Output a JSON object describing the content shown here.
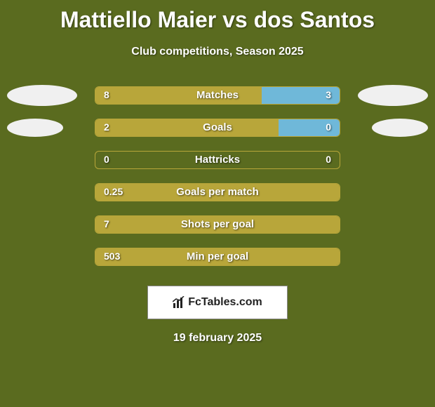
{
  "title": "Mattiello Maier vs dos Santos",
  "subtitle": "Club competitions, Season 2025",
  "date": "19 february 2025",
  "banner_text": "FcTables.com",
  "colors": {
    "background": "#5a6b1f",
    "bar_yellow": "#b8a63a",
    "bar_blue": "#6fb8d9",
    "bar_empty": "transparent",
    "border": "#b8a63a",
    "text": "#ffffff",
    "avatar_bg": "#f0f0f0",
    "banner_bg": "#ffffff"
  },
  "avatars": {
    "show_row1": true,
    "show_row2": true
  },
  "stats": [
    {
      "label": "Matches",
      "left_val": "8",
      "right_val": "3",
      "left_color": "#b8a63a",
      "right_color": "#6fb8d9",
      "left_pct": 68,
      "right_pct": 32
    },
    {
      "label": "Goals",
      "left_val": "2",
      "right_val": "0",
      "left_color": "#b8a63a",
      "right_color": "#6fb8d9",
      "left_pct": 75,
      "right_pct": 25
    },
    {
      "label": "Hattricks",
      "left_val": "0",
      "right_val": "0",
      "left_color": "transparent",
      "right_color": "transparent",
      "left_pct": 50,
      "right_pct": 50
    },
    {
      "label": "Goals per match",
      "left_val": "0.25",
      "right_val": "",
      "left_color": "#b8a63a",
      "right_color": "transparent",
      "left_pct": 100,
      "right_pct": 0
    },
    {
      "label": "Shots per goal",
      "left_val": "7",
      "right_val": "",
      "left_color": "#b8a63a",
      "right_color": "transparent",
      "left_pct": 100,
      "right_pct": 0
    },
    {
      "label": "Min per goal",
      "left_val": "503",
      "right_val": "",
      "left_color": "#b8a63a",
      "right_color": "transparent",
      "left_pct": 100,
      "right_pct": 0
    }
  ]
}
